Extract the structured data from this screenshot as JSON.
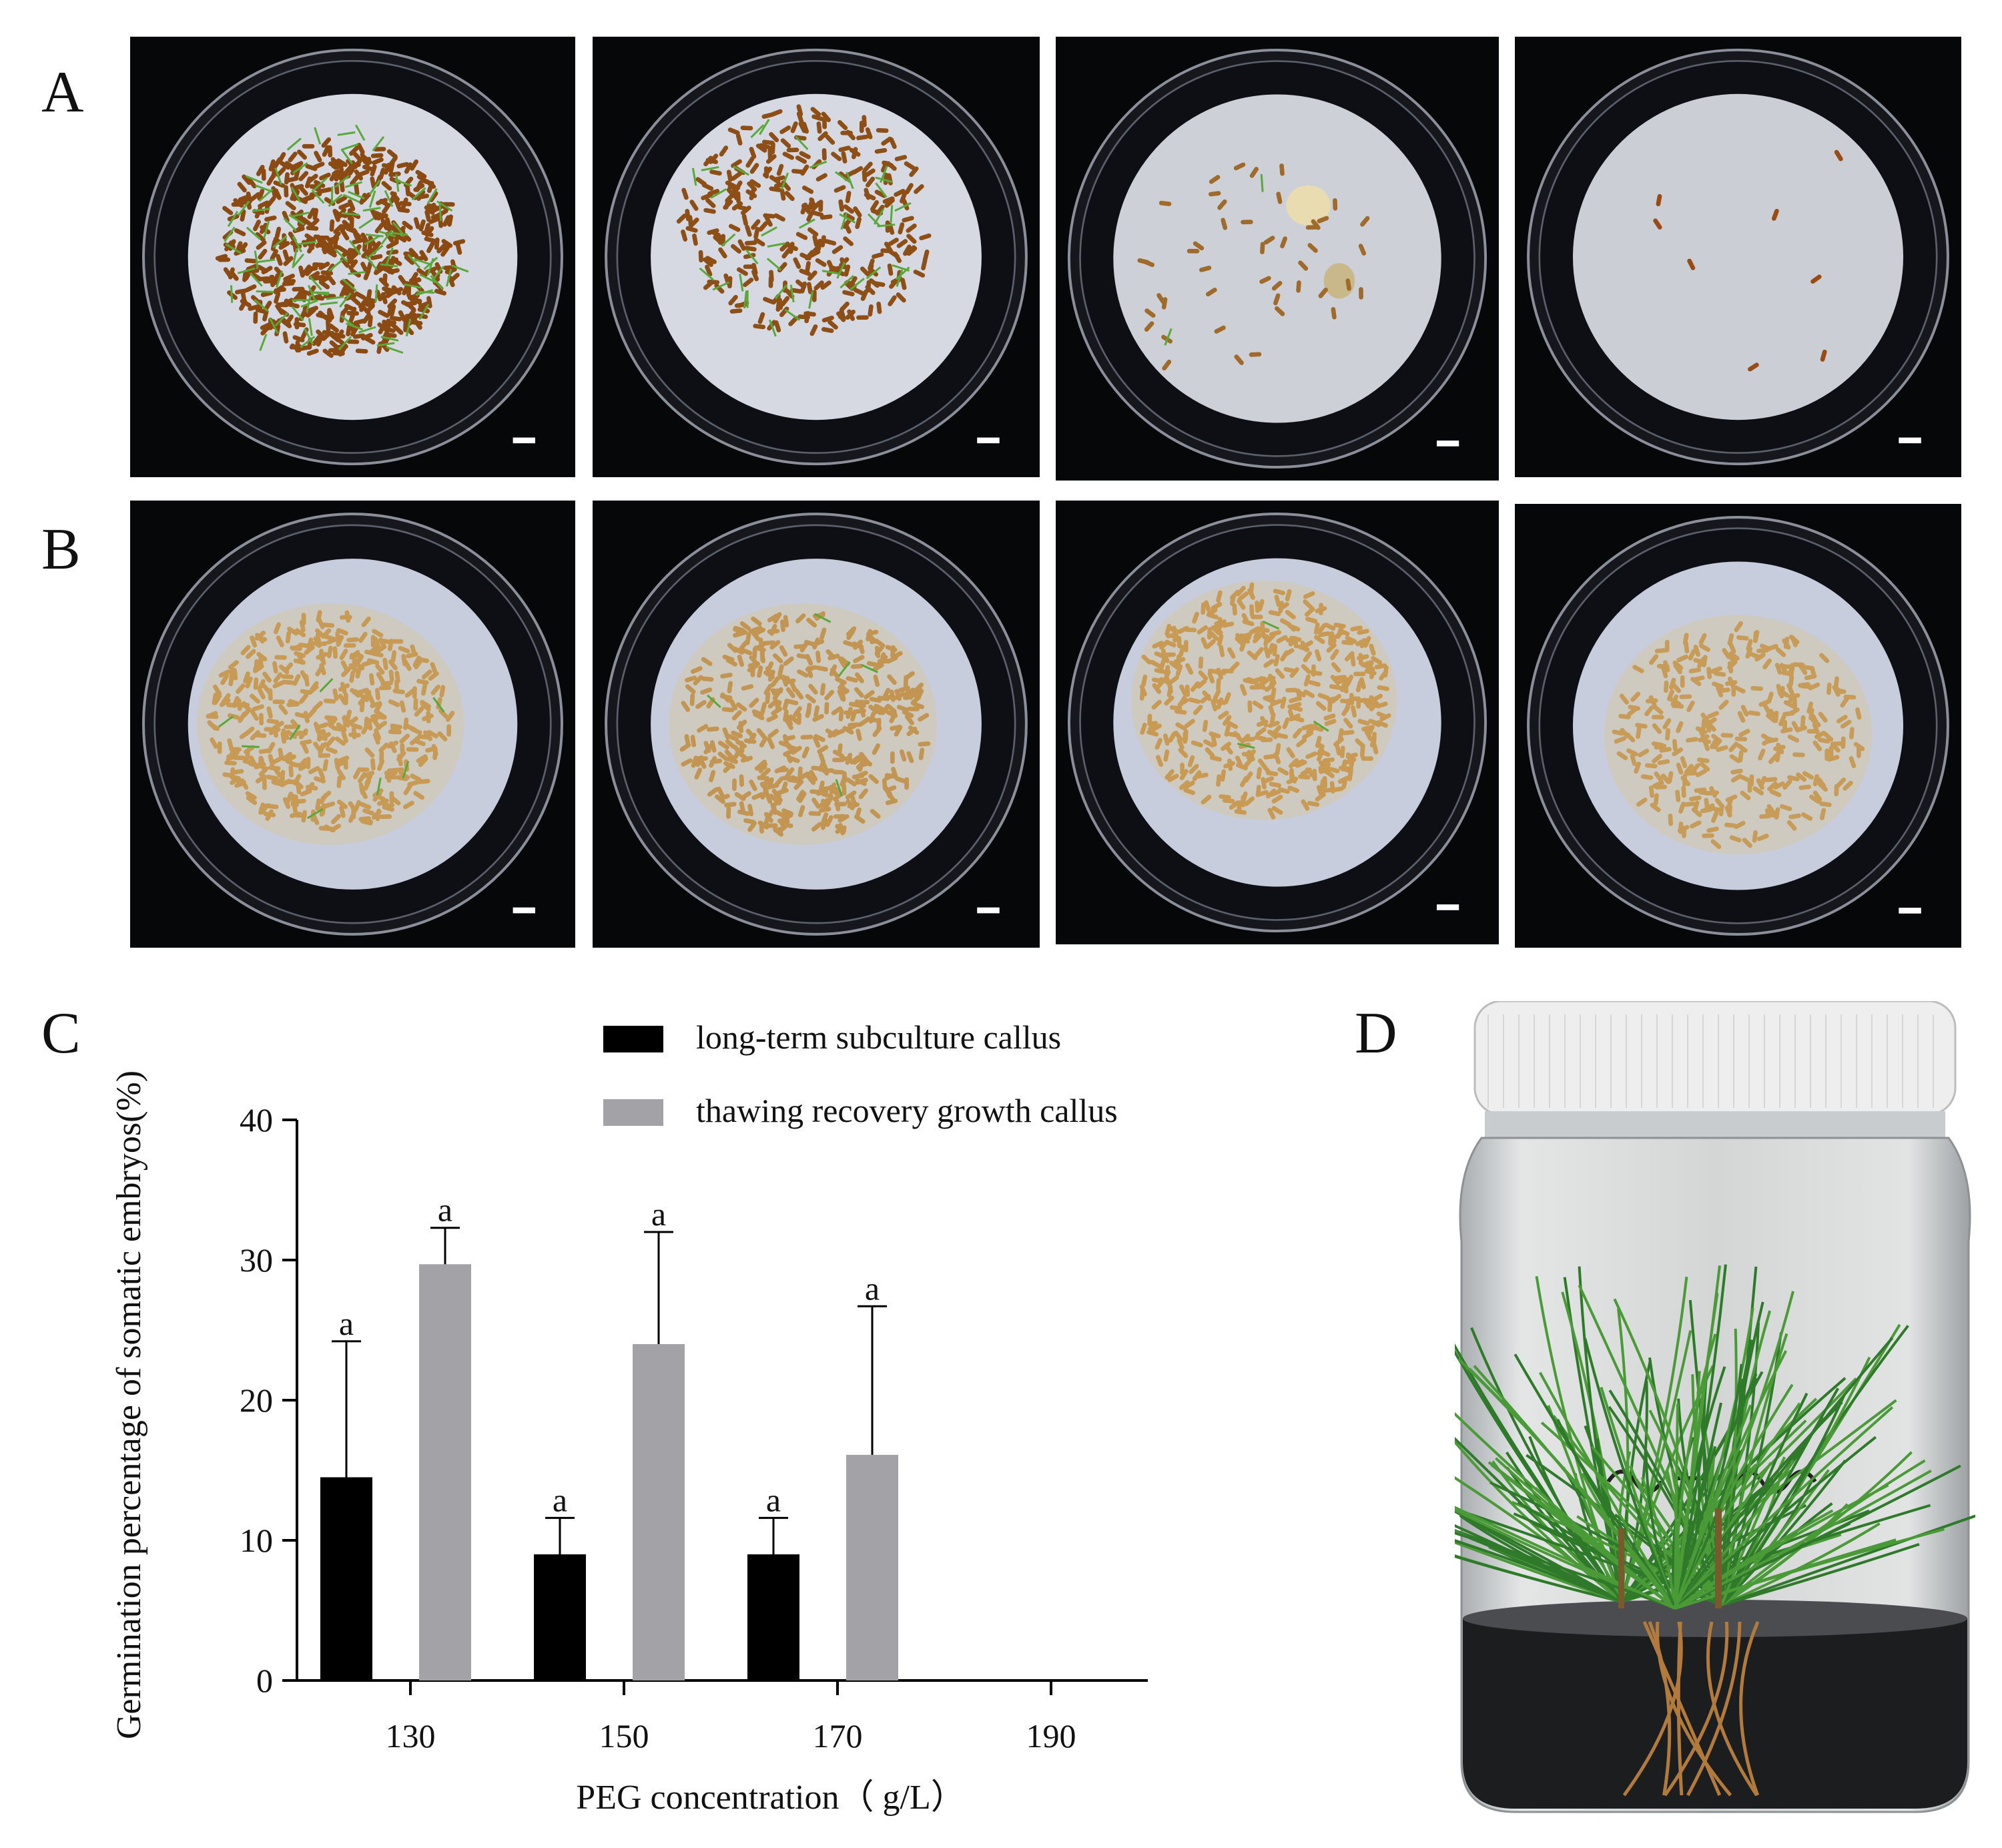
{
  "panels": {
    "a_label": "A",
    "b_label": "B",
    "c_label": "C",
    "d_label": "D"
  },
  "colors": {
    "series_long": "#000000",
    "series_thaw": "#a3a3a7",
    "dish_background": "#060708",
    "filter_paper": "#c9cdd6"
  },
  "photos": {
    "row_a": [
      {
        "content": "dense brown embryos with green shoots"
      },
      {
        "content": "scattered brown embryos with shoots"
      },
      {
        "content": "sparse embryos, pale callus clump"
      },
      {
        "content": "almost empty filter paper"
      }
    ],
    "row_b": [
      {
        "content": "dense pale callus with few shoots"
      },
      {
        "content": "dense pale callus with few shoots"
      },
      {
        "content": "dense pale callus"
      },
      {
        "content": "moderate pale callus"
      }
    ]
  },
  "chart_data": {
    "type": "bar",
    "xlabel": "PEG concentration（ g/L）",
    "ylabel": "Germination percentage of somatic embryos(%)",
    "categories": [
      "130",
      "150",
      "170",
      "190"
    ],
    "ylim": [
      0,
      40
    ],
    "yticks": [
      "0",
      "10",
      "20",
      "30",
      "40"
    ],
    "series": [
      {
        "name": "long-term subculture callus",
        "values": [
          14.5,
          9,
          9,
          0
        ],
        "errors": [
          9.7,
          2.6,
          2.6,
          0
        ],
        "sig": [
          "a",
          "a",
          "a",
          ""
        ]
      },
      {
        "name": "thawing recovery growth callus",
        "values": [
          29.7,
          24,
          16.1,
          0
        ],
        "errors": [
          2.6,
          8.0,
          10.6,
          0
        ],
        "sig": [
          "a",
          "a",
          "a",
          ""
        ]
      }
    ],
    "legend_position": "top"
  },
  "jar": {
    "content": "pine seedlings in a glass culture jar with white lid"
  }
}
